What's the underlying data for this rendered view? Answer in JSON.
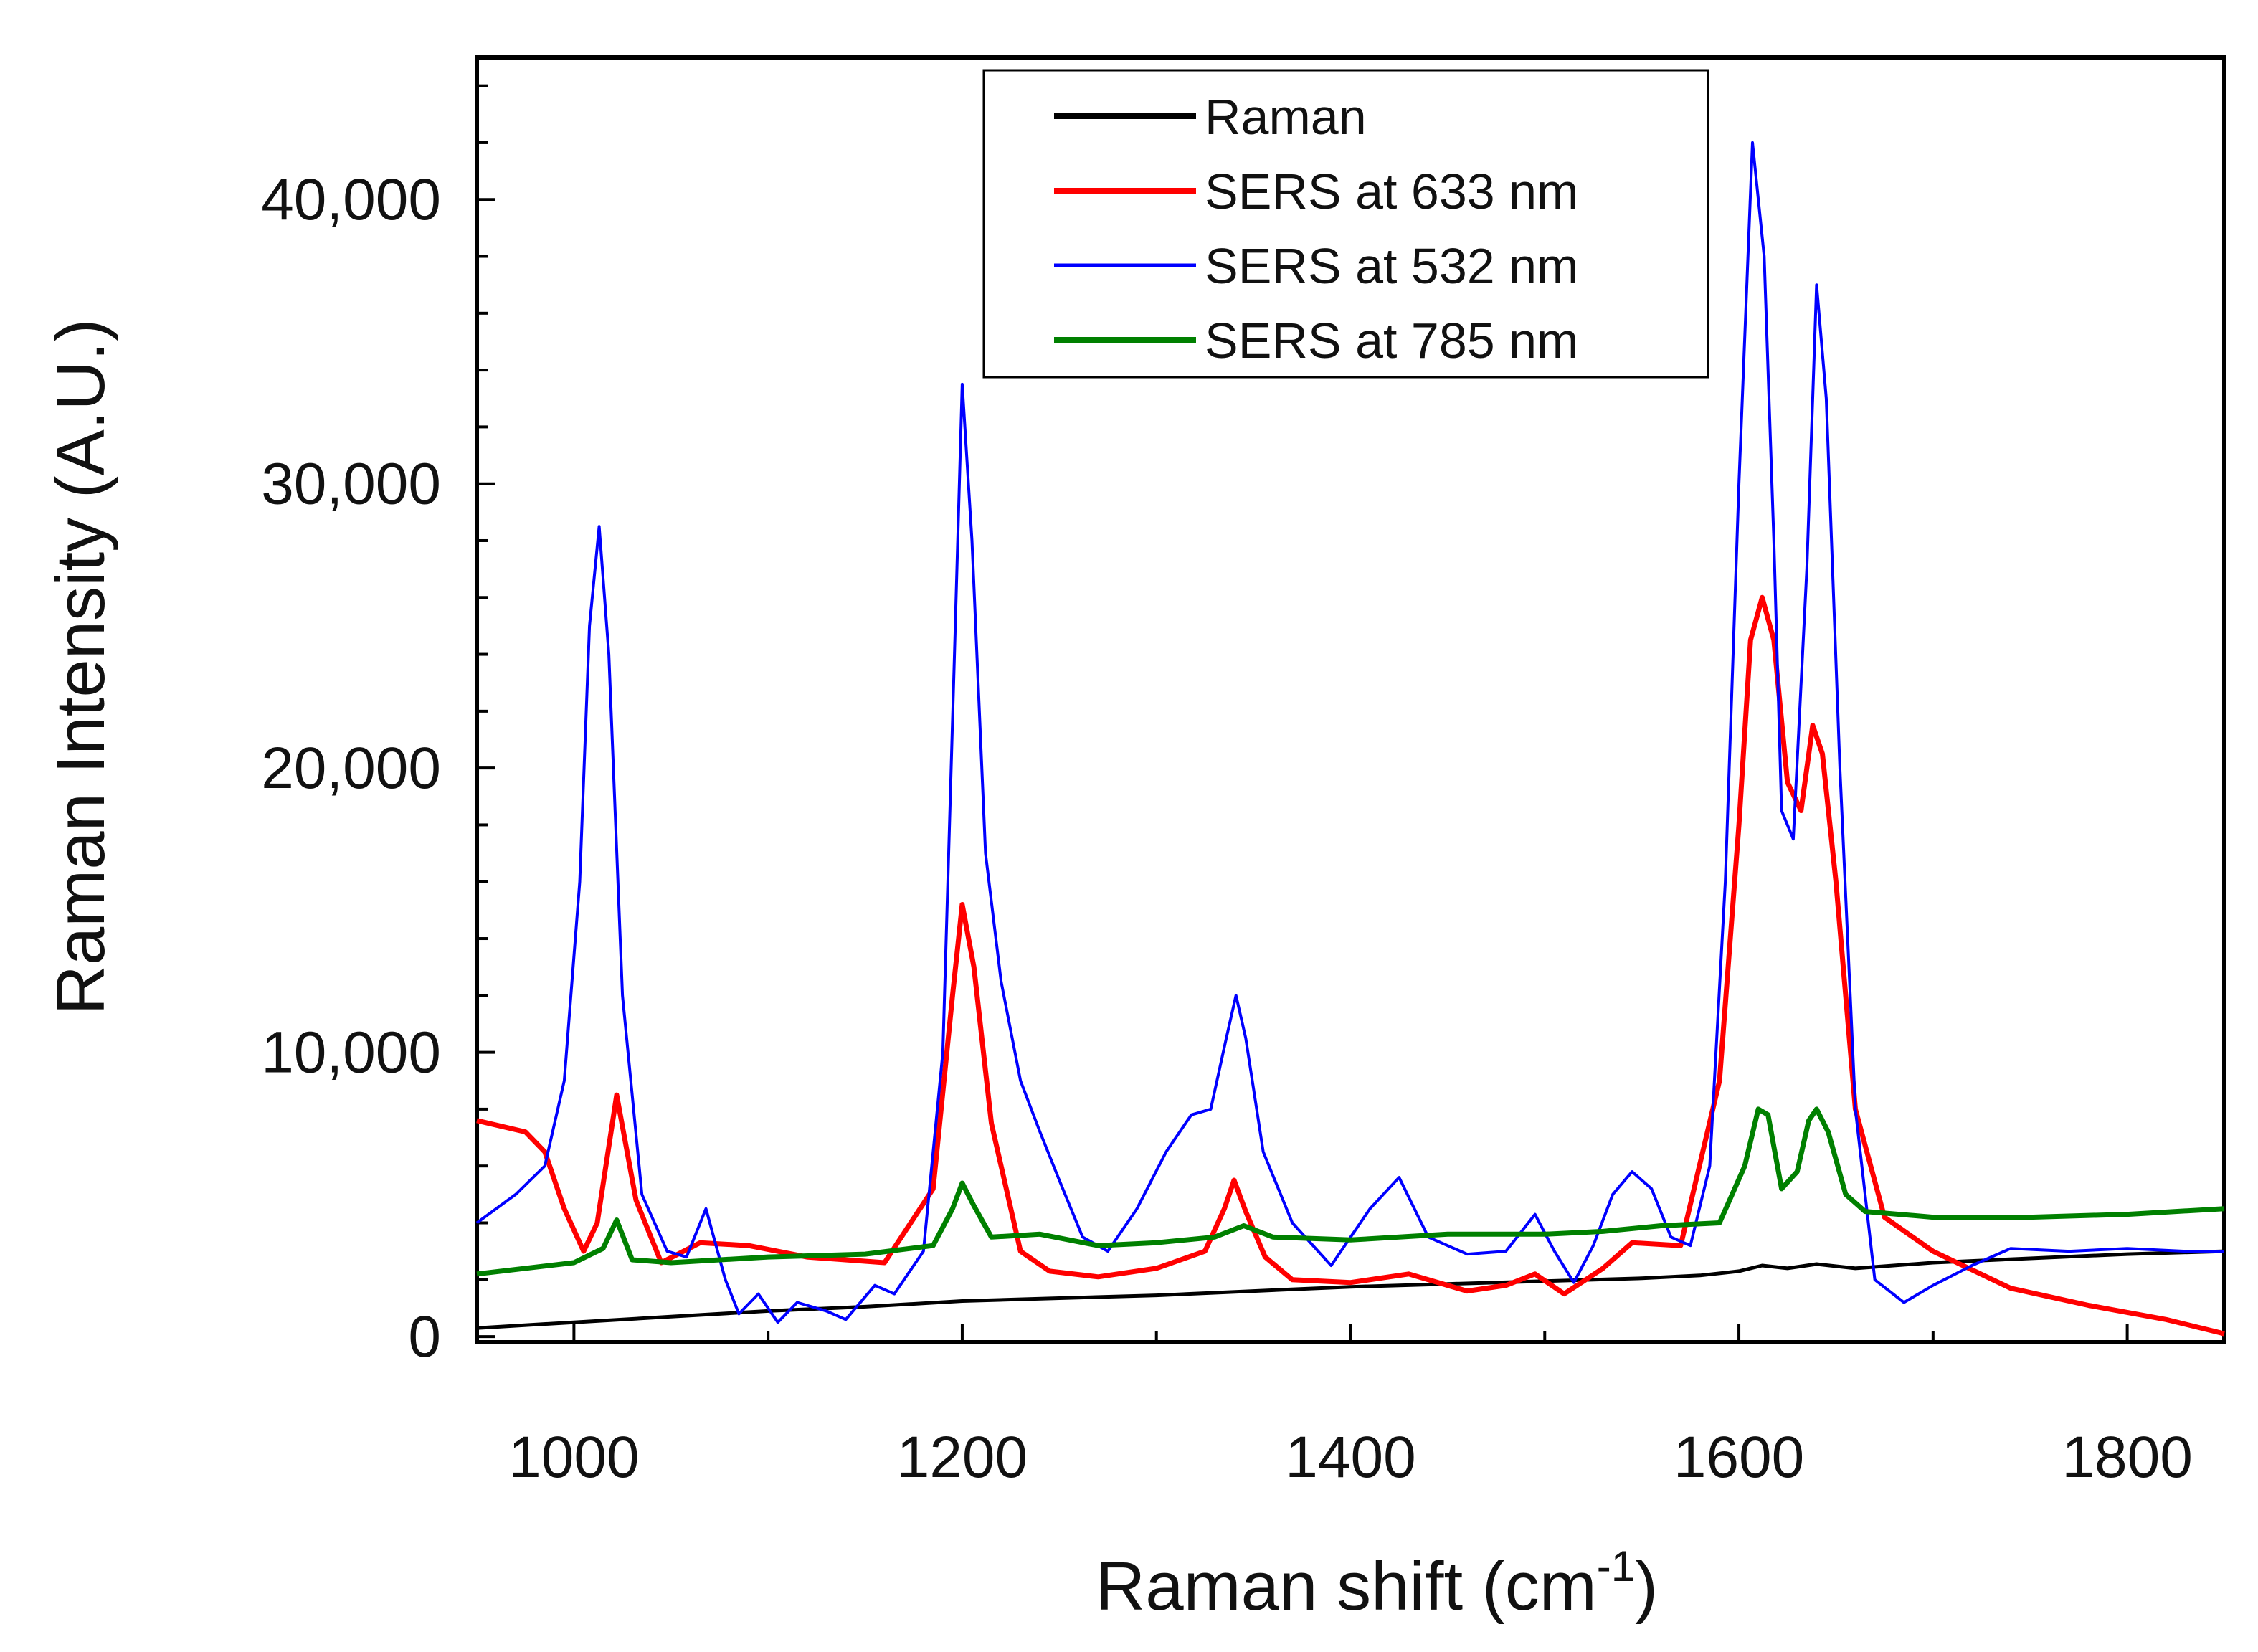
{
  "chart_data": {
    "type": "line",
    "title": "",
    "xlabel": "Raman shift (cm",
    "xlabel_superscript": "-1",
    "xlabel_suffix": ")",
    "ylabel": "Raman Intensity (A.U.)",
    "xlim": [
      950,
      1850
    ],
    "ylim": [
      -200,
      45000
    ],
    "xticks": [
      1000,
      1200,
      1400,
      1600,
      1800
    ],
    "xtick_labels": [
      "1000",
      "1200",
      "1400",
      "1600",
      "1800"
    ],
    "yticks": [
      0,
      10000,
      20000,
      30000,
      40000
    ],
    "ytick_labels": [
      "0",
      "10,000",
      "20,000",
      "30,000",
      "40,000"
    ],
    "legend_position": "top-center",
    "series": [
      {
        "name": "Raman",
        "color": "#000000",
        "x": [
          950,
          1000,
          1050,
          1100,
          1150,
          1200,
          1250,
          1300,
          1350,
          1400,
          1450,
          1500,
          1550,
          1580,
          1600,
          1612,
          1625,
          1640,
          1660,
          1700,
          1750,
          1800,
          1850
        ],
        "values": [
          300,
          500,
          700,
          900,
          1050,
          1250,
          1350,
          1450,
          1600,
          1750,
          1850,
          1950,
          2050,
          2150,
          2300,
          2500,
          2400,
          2550,
          2400,
          2600,
          2750,
          2900,
          3000
        ]
      },
      {
        "name": "SERS at 633 nm",
        "color": "#ff0000",
        "x": [
          950,
          975,
          985,
          995,
          1005,
          1012,
          1022,
          1032,
          1045,
          1065,
          1090,
          1120,
          1160,
          1185,
          1195,
          1200,
          1206,
          1215,
          1230,
          1245,
          1270,
          1300,
          1325,
          1335,
          1340,
          1346,
          1356,
          1370,
          1400,
          1430,
          1460,
          1480,
          1495,
          1510,
          1530,
          1545,
          1570,
          1590,
          1600,
          1606,
          1612,
          1618,
          1625,
          1632,
          1638,
          1643,
          1650,
          1660,
          1675,
          1700,
          1740,
          1780,
          1820,
          1850
        ],
        "values": [
          7600,
          7200,
          6500,
          4500,
          3000,
          4000,
          8500,
          4800,
          2600,
          3300,
          3200,
          2800,
          2600,
          5200,
          12000,
          15200,
          13000,
          7500,
          3000,
          2300,
          2100,
          2400,
          3000,
          4500,
          5500,
          4400,
          2800,
          2000,
          1900,
          2200,
          1600,
          1800,
          2200,
          1500,
          2400,
          3300,
          3200,
          9000,
          18000,
          24500,
          26000,
          24500,
          19500,
          18500,
          21500,
          20500,
          16000,
          8000,
          4200,
          3000,
          1700,
          1100,
          600,
          100
        ]
      },
      {
        "name": "SERS at 532 nm",
        "color": "#0000ff",
        "x": [
          950,
          970,
          985,
          995,
          1003,
          1008,
          1013,
          1018,
          1025,
          1035,
          1048,
          1058,
          1068,
          1078,
          1085,
          1095,
          1105,
          1115,
          1130,
          1140,
          1155,
          1165,
          1180,
          1190,
          1196,
          1200,
          1205,
          1212,
          1220,
          1230,
          1240,
          1250,
          1262,
          1275,
          1290,
          1305,
          1318,
          1328,
          1336,
          1341,
          1346,
          1355,
          1370,
          1390,
          1410,
          1425,
          1440,
          1460,
          1480,
          1495,
          1505,
          1515,
          1525,
          1535,
          1545,
          1555,
          1565,
          1575,
          1585,
          1593,
          1600,
          1607,
          1613,
          1618,
          1622,
          1628,
          1635,
          1640,
          1645,
          1652,
          1660,
          1670,
          1685,
          1700,
          1720,
          1740,
          1770,
          1800,
          1830,
          1850
        ],
        "values": [
          4000,
          5000,
          6000,
          9000,
          16000,
          25000,
          28500,
          24000,
          12000,
          5000,
          3000,
          2800,
          4500,
          2000,
          800,
          1500,
          500,
          1200,
          900,
          600,
          1800,
          1500,
          3000,
          10000,
          24000,
          33500,
          28000,
          17000,
          12500,
          9000,
          7200,
          5500,
          3500,
          3000,
          4500,
          6500,
          7800,
          8000,
          10500,
          12000,
          10500,
          6500,
          4000,
          2500,
          4500,
          5600,
          3500,
          2900,
          3000,
          4300,
          3000,
          1900,
          3200,
          5000,
          5800,
          5200,
          3500,
          3200,
          6000,
          16000,
          30000,
          42000,
          38000,
          28000,
          18500,
          17500,
          27000,
          37000,
          33000,
          20000,
          8000,
          2000,
          1200,
          1800,
          2500,
          3100,
          3000,
          3100,
          3000,
          3000
        ]
      },
      {
        "name": "SERS at 785 nm",
        "color": "#008000",
        "x": [
          950,
          1000,
          1015,
          1022,
          1030,
          1050,
          1100,
          1150,
          1185,
          1195,
          1200,
          1206,
          1215,
          1240,
          1270,
          1300,
          1330,
          1345,
          1360,
          1400,
          1450,
          1500,
          1530,
          1560,
          1590,
          1603,
          1610,
          1615,
          1622,
          1630,
          1636,
          1640,
          1646,
          1655,
          1665,
          1700,
          1750,
          1800,
          1850
        ],
        "values": [
          2200,
          2600,
          3100,
          4100,
          2700,
          2600,
          2800,
          2900,
          3200,
          4500,
          5400,
          4600,
          3500,
          3600,
          3200,
          3300,
          3500,
          3900,
          3500,
          3400,
          3600,
          3600,
          3700,
          3900,
          4000,
          6000,
          8000,
          7800,
          5200,
          5800,
          7600,
          8000,
          7200,
          5000,
          4400,
          4200,
          4200,
          4300,
          4500
        ]
      }
    ]
  }
}
